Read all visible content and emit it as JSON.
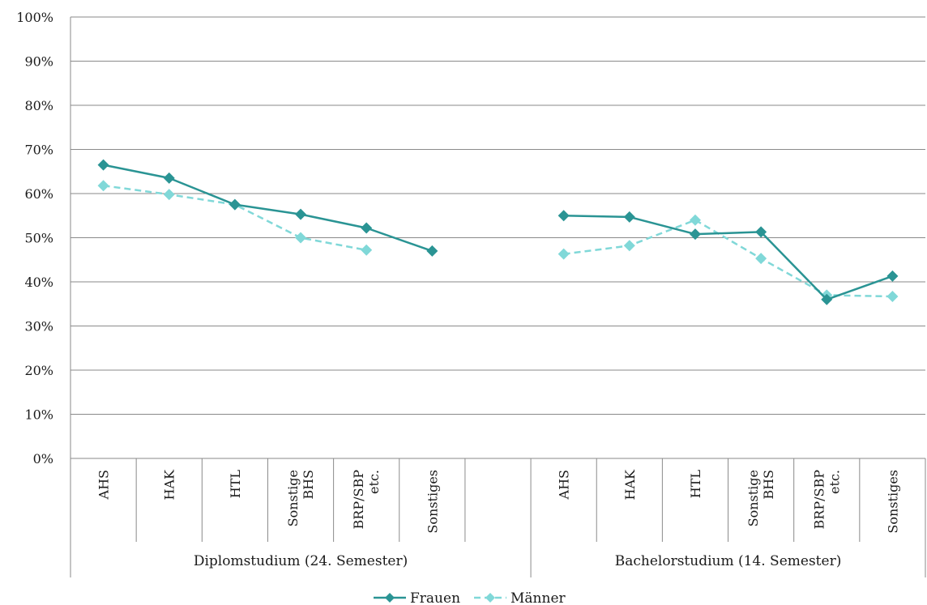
{
  "chart_data": {
    "type": "line",
    "y_ticks": [
      "0%",
      "10%",
      "20%",
      "30%",
      "40%",
      "50%",
      "60%",
      "70%",
      "80%",
      "90%",
      "100%"
    ],
    "ylim": [
      0,
      100
    ],
    "grid": true,
    "legend_position": "bottom",
    "groups": [
      {
        "label": "Diplomstudium (24. Semester)",
        "categories": [
          "AHS",
          "HAK",
          "HTL",
          "Sonstige BHS",
          "BRP/SBP etc.",
          "Sonstiges"
        ]
      },
      {
        "label": "Bachelorstudium (14. Semester)",
        "categories": [
          "AHS",
          "HAK",
          "HTL",
          "Sonstige BHS",
          "BRP/SBP etc.",
          "Sonstiges"
        ]
      }
    ],
    "categories": [
      "AHS",
      "HAK",
      "HTL",
      "Sonstige BHS",
      "BRP/SBP etc.",
      "Sonstiges",
      "",
      "AHS",
      "HAK",
      "HTL",
      "Sonstige BHS",
      "BRP/SBP etc.",
      "Sonstiges"
    ],
    "series": [
      {
        "name": "Frauen",
        "color": "#2a9494",
        "line": "solid",
        "values": [
          66.5,
          63.5,
          57.5,
          55.3,
          52.2,
          47.0,
          null,
          55.0,
          54.7,
          50.8,
          51.3,
          36.0,
          41.3
        ]
      },
      {
        "name": "Männer",
        "color": "#80d8d8",
        "line": "dashed",
        "values": [
          61.8,
          59.8,
          57.5,
          50.0,
          47.2,
          null,
          null,
          46.3,
          48.2,
          54.0,
          45.3,
          37.0,
          36.7
        ]
      }
    ]
  }
}
